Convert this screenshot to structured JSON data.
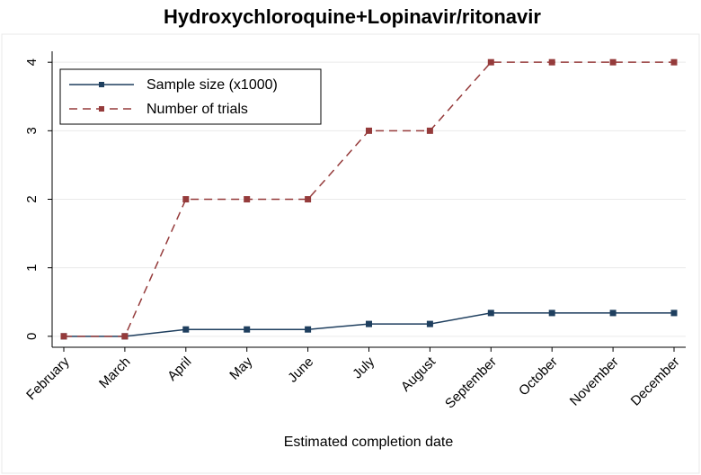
{
  "chart_data": {
    "type": "line",
    "title": "Hydroxychloroquine+Lopinavir/ritonavir",
    "x_label": "Estimated completion date",
    "categories": [
      "February",
      "March",
      "April",
      "May",
      "June",
      "July",
      "August",
      "September",
      "October",
      "November",
      "December"
    ],
    "series": [
      {
        "name": "Sample size (x1000)",
        "color": "#1f3f5f",
        "dash": "solid",
        "values": [
          0,
          0,
          0.1,
          0.1,
          0.1,
          0.18,
          0.18,
          0.34,
          0.34,
          0.34,
          0.34
        ]
      },
      {
        "name": "Number of trials",
        "color": "#953b3b",
        "dash": "dashed",
        "values": [
          0,
          0,
          2,
          2,
          2,
          3,
          3,
          4,
          4,
          4,
          4
        ]
      }
    ],
    "ylim": [
      -0.16,
      4.16
    ],
    "yticks": [
      0,
      1,
      2,
      3,
      4
    ],
    "grid": true,
    "legend": "top-left"
  }
}
